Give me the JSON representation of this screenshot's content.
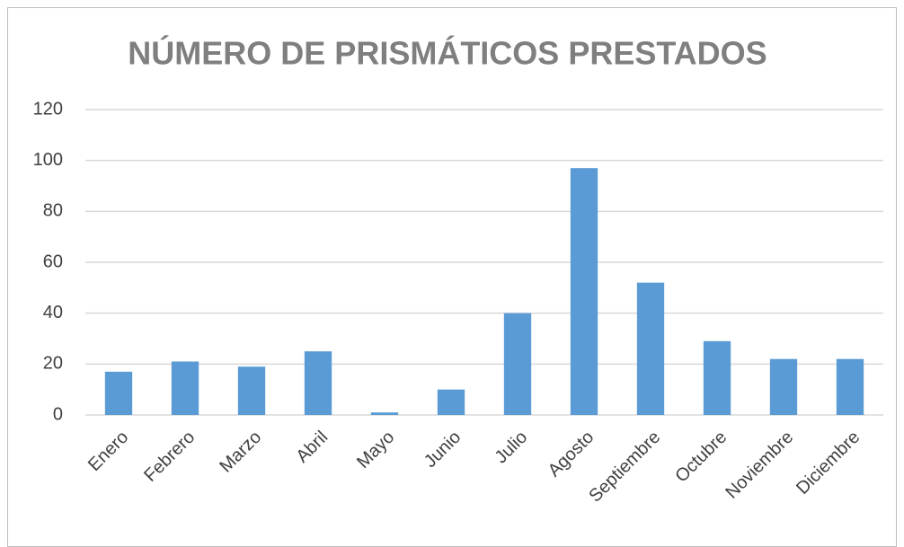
{
  "chart_data": {
    "type": "bar",
    "title": "NÚMERO DE PRISMÁTICOS PRESTADOS",
    "categories": [
      "Enero",
      "Febrero",
      "Marzo",
      "Abril",
      "Mayo",
      "Junio",
      "Julio",
      "Agosto",
      "Septiembre",
      "Octubre",
      "Noviembre",
      "Diciembre"
    ],
    "values": [
      17,
      21,
      19,
      25,
      1,
      10,
      40,
      97,
      52,
      29,
      22,
      22
    ],
    "color": "#5b9bd5",
    "ylim": [
      0,
      120
    ],
    "yticks": [
      0,
      20,
      40,
      60,
      80,
      100,
      120
    ],
    "grid": true
  }
}
